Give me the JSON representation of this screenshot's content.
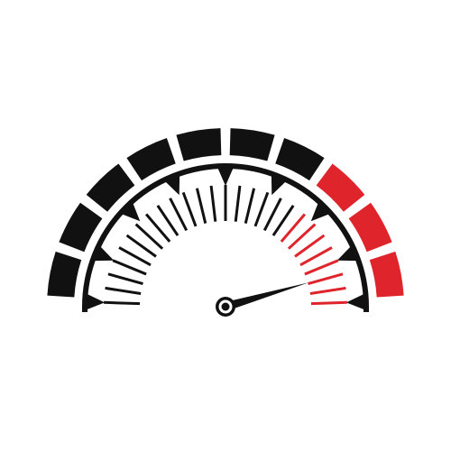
{
  "gauge": {
    "icon": "speedometer-icon",
    "needle_value": 0.91,
    "colors": {
      "background": "#ffffff",
      "dark": "#111111",
      "accent": "#e0242b"
    },
    "outer_segments": {
      "count": 10,
      "red_count": 3
    },
    "ticks": {
      "count": 27,
      "red_count": 8
    },
    "pointer_count": 9
  }
}
